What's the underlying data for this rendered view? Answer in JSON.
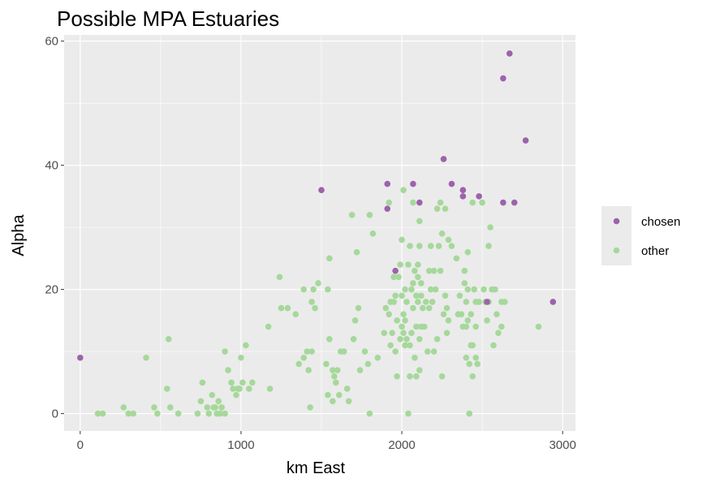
{
  "chart_data": {
    "type": "scatter",
    "title": "Possible MPA Estuaries",
    "xlabel": "km East",
    "ylabel": "Alpha",
    "xlim": [
      -100,
      3080
    ],
    "ylim": [
      -2.8,
      61
    ],
    "xticks": [
      0,
      1000,
      2000,
      3000
    ],
    "xtick_labels": [
      "0",
      "1000",
      "2000",
      "3000"
    ],
    "yticks": [
      0,
      20,
      40,
      60
    ],
    "ytick_labels": [
      "0",
      "20",
      "40",
      "60"
    ],
    "grid": true,
    "legend": {
      "position": "right"
    },
    "series": [
      {
        "name": "other",
        "color": "#a6d89b",
        "points": [
          [
            110,
            0
          ],
          [
            140,
            0
          ],
          [
            270,
            1
          ],
          [
            300,
            0
          ],
          [
            330,
            0
          ],
          [
            410,
            9
          ],
          [
            460,
            1
          ],
          [
            480,
            0
          ],
          [
            540,
            4
          ],
          [
            550,
            12
          ],
          [
            560,
            1
          ],
          [
            610,
            0
          ],
          [
            730,
            0
          ],
          [
            750,
            2
          ],
          [
            760,
            5
          ],
          [
            790,
            1
          ],
          [
            800,
            0
          ],
          [
            820,
            3
          ],
          [
            830,
            1
          ],
          [
            840,
            1
          ],
          [
            850,
            0
          ],
          [
            860,
            2
          ],
          [
            870,
            0
          ],
          [
            880,
            1
          ],
          [
            900,
            0
          ],
          [
            900,
            10
          ],
          [
            920,
            7
          ],
          [
            940,
            5
          ],
          [
            950,
            4
          ],
          [
            970,
            3
          ],
          [
            980,
            4
          ],
          [
            990,
            4
          ],
          [
            1000,
            9
          ],
          [
            1010,
            5
          ],
          [
            1030,
            11
          ],
          [
            1050,
            4
          ],
          [
            1070,
            5
          ],
          [
            1170,
            14
          ],
          [
            1180,
            4
          ],
          [
            1240,
            22
          ],
          [
            1250,
            17
          ],
          [
            1290,
            17
          ],
          [
            1340,
            16
          ],
          [
            1360,
            8
          ],
          [
            1390,
            20
          ],
          [
            1390,
            9
          ],
          [
            1410,
            10
          ],
          [
            1420,
            7
          ],
          [
            1430,
            1
          ],
          [
            1440,
            10
          ],
          [
            1440,
            18
          ],
          [
            1450,
            20
          ],
          [
            1460,
            17
          ],
          [
            1480,
            21
          ],
          [
            1530,
            8
          ],
          [
            1540,
            20
          ],
          [
            1540,
            3
          ],
          [
            1550,
            25
          ],
          [
            1550,
            12
          ],
          [
            1570,
            2
          ],
          [
            1570,
            7
          ],
          [
            1580,
            6
          ],
          [
            1590,
            5
          ],
          [
            1600,
            7
          ],
          [
            1610,
            3
          ],
          [
            1620,
            10
          ],
          [
            1640,
            10
          ],
          [
            1660,
            4
          ],
          [
            1670,
            2
          ],
          [
            1690,
            32
          ],
          [
            1700,
            12
          ],
          [
            1710,
            15
          ],
          [
            1720,
            26
          ],
          [
            1730,
            17
          ],
          [
            1740,
            7
          ],
          [
            1770,
            10
          ],
          [
            1790,
            8
          ],
          [
            1800,
            32
          ],
          [
            1800,
            0
          ],
          [
            1820,
            29
          ],
          [
            1850,
            9
          ],
          [
            1890,
            13
          ],
          [
            1900,
            17
          ],
          [
            1920,
            16
          ],
          [
            1920,
            34
          ],
          [
            1930,
            11
          ],
          [
            1930,
            18
          ],
          [
            1940,
            13
          ],
          [
            1950,
            22
          ],
          [
            1950,
            18
          ],
          [
            1960,
            19
          ],
          [
            1960,
            10
          ],
          [
            1970,
            6
          ],
          [
            1970,
            15
          ],
          [
            1980,
            22
          ],
          [
            1990,
            24
          ],
          [
            1990,
            12
          ],
          [
            2000,
            14
          ],
          [
            2000,
            19
          ],
          [
            2000,
            28
          ],
          [
            2010,
            36
          ],
          [
            2010,
            13
          ],
          [
            2010,
            16
          ],
          [
            2020,
            11
          ],
          [
            2020,
            15
          ],
          [
            2020,
            20
          ],
          [
            2030,
            12
          ],
          [
            2030,
            18
          ],
          [
            2040,
            0
          ],
          [
            2040,
            24
          ],
          [
            2050,
            6
          ],
          [
            2050,
            11
          ],
          [
            2050,
            27
          ],
          [
            2060,
            13
          ],
          [
            2060,
            20
          ],
          [
            2070,
            21
          ],
          [
            2070,
            34
          ],
          [
            2070,
            17
          ],
          [
            2080,
            9
          ],
          [
            2080,
            23
          ],
          [
            2090,
            6
          ],
          [
            2090,
            14
          ],
          [
            2090,
            19
          ],
          [
            2100,
            18
          ],
          [
            2100,
            22
          ],
          [
            2100,
            24
          ],
          [
            2110,
            7
          ],
          [
            2110,
            12
          ],
          [
            2110,
            27
          ],
          [
            2110,
            31
          ],
          [
            2120,
            14
          ],
          [
            2120,
            19
          ],
          [
            2120,
            21
          ],
          [
            2130,
            17
          ],
          [
            2140,
            14
          ],
          [
            2150,
            18
          ],
          [
            2160,
            10
          ],
          [
            2170,
            17
          ],
          [
            2170,
            23
          ],
          [
            2180,
            27
          ],
          [
            2180,
            20
          ],
          [
            2190,
            18
          ],
          [
            2200,
            10
          ],
          [
            2200,
            23
          ],
          [
            2210,
            20
          ],
          [
            2220,
            33
          ],
          [
            2220,
            12
          ],
          [
            2230,
            27
          ],
          [
            2240,
            23
          ],
          [
            2240,
            34
          ],
          [
            2250,
            6
          ],
          [
            2250,
            29
          ],
          [
            2260,
            16
          ],
          [
            2270,
            33
          ],
          [
            2270,
            19
          ],
          [
            2280,
            13
          ],
          [
            2280,
            17
          ],
          [
            2290,
            15
          ],
          [
            2290,
            28
          ],
          [
            2310,
            27
          ],
          [
            2340,
            25
          ],
          [
            2350,
            16
          ],
          [
            2360,
            19
          ],
          [
            2370,
            16
          ],
          [
            2380,
            14
          ],
          [
            2380,
            36
          ],
          [
            2390,
            21
          ],
          [
            2390,
            23
          ],
          [
            2400,
            14
          ],
          [
            2400,
            18
          ],
          [
            2400,
            9
          ],
          [
            2410,
            15
          ],
          [
            2410,
            20
          ],
          [
            2410,
            26
          ],
          [
            2420,
            8
          ],
          [
            2420,
            0
          ],
          [
            2430,
            11
          ],
          [
            2430,
            16
          ],
          [
            2440,
            11
          ],
          [
            2440,
            6
          ],
          [
            2440,
            34
          ],
          [
            2450,
            20
          ],
          [
            2460,
            18
          ],
          [
            2460,
            14
          ],
          [
            2460,
            9
          ],
          [
            2470,
            8
          ],
          [
            2480,
            18
          ],
          [
            2500,
            34
          ],
          [
            2510,
            20
          ],
          [
            2520,
            18
          ],
          [
            2530,
            15
          ],
          [
            2540,
            27
          ],
          [
            2540,
            18
          ],
          [
            2550,
            30
          ],
          [
            2560,
            20
          ],
          [
            2570,
            11
          ],
          [
            2580,
            20
          ],
          [
            2590,
            16
          ],
          [
            2600,
            13
          ],
          [
            2620,
            14
          ],
          [
            2620,
            18
          ],
          [
            2640,
            18
          ],
          [
            2850,
            14
          ]
        ]
      },
      {
        "name": "chosen",
        "color": "#9d62ab",
        "points": [
          [
            0,
            9
          ],
          [
            1500,
            36
          ],
          [
            1910,
            37
          ],
          [
            1910,
            33
          ],
          [
            1960,
            23
          ],
          [
            2070,
            37
          ],
          [
            2110,
            34
          ],
          [
            2260,
            41
          ],
          [
            2310,
            37
          ],
          [
            2380,
            35
          ],
          [
            2380,
            36
          ],
          [
            2480,
            35
          ],
          [
            2530,
            18
          ],
          [
            2630,
            54
          ],
          [
            2630,
            34
          ],
          [
            2670,
            58
          ],
          [
            2700,
            34
          ],
          [
            2770,
            44
          ],
          [
            2940,
            18
          ]
        ]
      }
    ]
  }
}
